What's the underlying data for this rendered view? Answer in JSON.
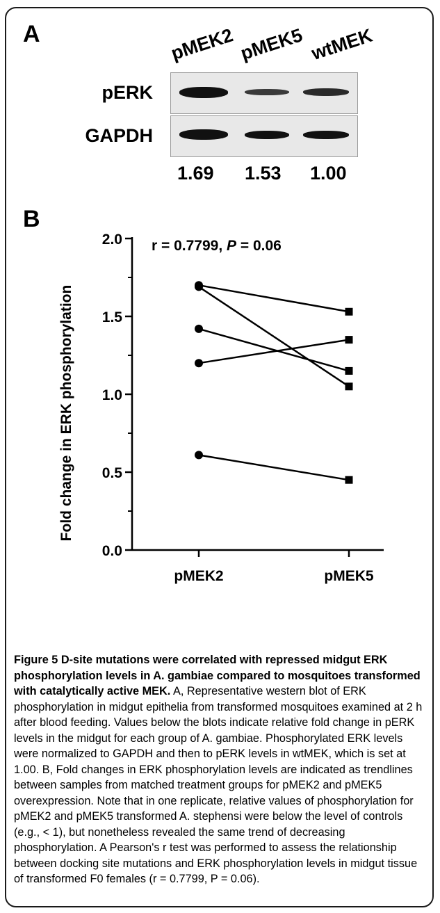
{
  "panel_a": {
    "label": "A",
    "lanes": [
      "pMEK2",
      "pMEK5",
      "wtMEK"
    ],
    "rows": [
      "pERK",
      "GAPDH"
    ],
    "ratios": [
      "1.69",
      "1.53",
      "1.00"
    ]
  },
  "panel_b": {
    "label": "B"
  },
  "chart_data": {
    "type": "line",
    "categories": [
      "pMEK2",
      "pMEK5"
    ],
    "ylabel": "Fold change in ERK phosphorylation",
    "ylim": [
      0,
      2.0
    ],
    "yticks": [
      "0.0",
      "0.5",
      "1.0",
      "1.5",
      "2.0"
    ],
    "annotation": {
      "prefix": "r = 0.7799, ",
      "p_symbol": "P",
      "suffix": " = 0.06"
    },
    "series": [
      {
        "values": [
          1.7,
          1.53
        ]
      },
      {
        "values": [
          1.69,
          1.05
        ]
      },
      {
        "values": [
          1.42,
          1.15
        ]
      },
      {
        "values": [
          1.2,
          1.35
        ]
      },
      {
        "values": [
          0.61,
          0.45
        ]
      }
    ]
  },
  "caption": {
    "title": "Figure 5 D-site mutations were correlated with repressed midgut ERK phosphorylation levels in A. gambiae compared to mosquitoes transformed with catalytically active MEK.",
    "text": "A, Representative western blot of ERK phosphorylation in midgut epithelia from transformed mosquitoes examined at 2 h after blood feeding. Values below the blots indicate relative fold change in pERK levels in the midgut for each group of A. gambiae. Phosphorylated ERK levels were normalized to GAPDH and then to pERK levels in wtMEK, which is set at 1.00. B, Fold changes in ERK phosphorylation levels are indicated as trendlines between samples from matched treatment groups for pMEK2 and pMEK5 overexpression. Note that in one replicate, relative values of phosphorylation for pMEK2 and pMEK5 transformed A. stephensi were below the level of controls (e.g., < 1), but nonetheless revealed the same trend of decreasing phosphorylation. A Pearson's r test was performed to assess the relationship between docking site mutations and ERK phosphorylation levels in midgut tissue of transformed F0 females (r = 0.7799, P = 0.06)."
  }
}
